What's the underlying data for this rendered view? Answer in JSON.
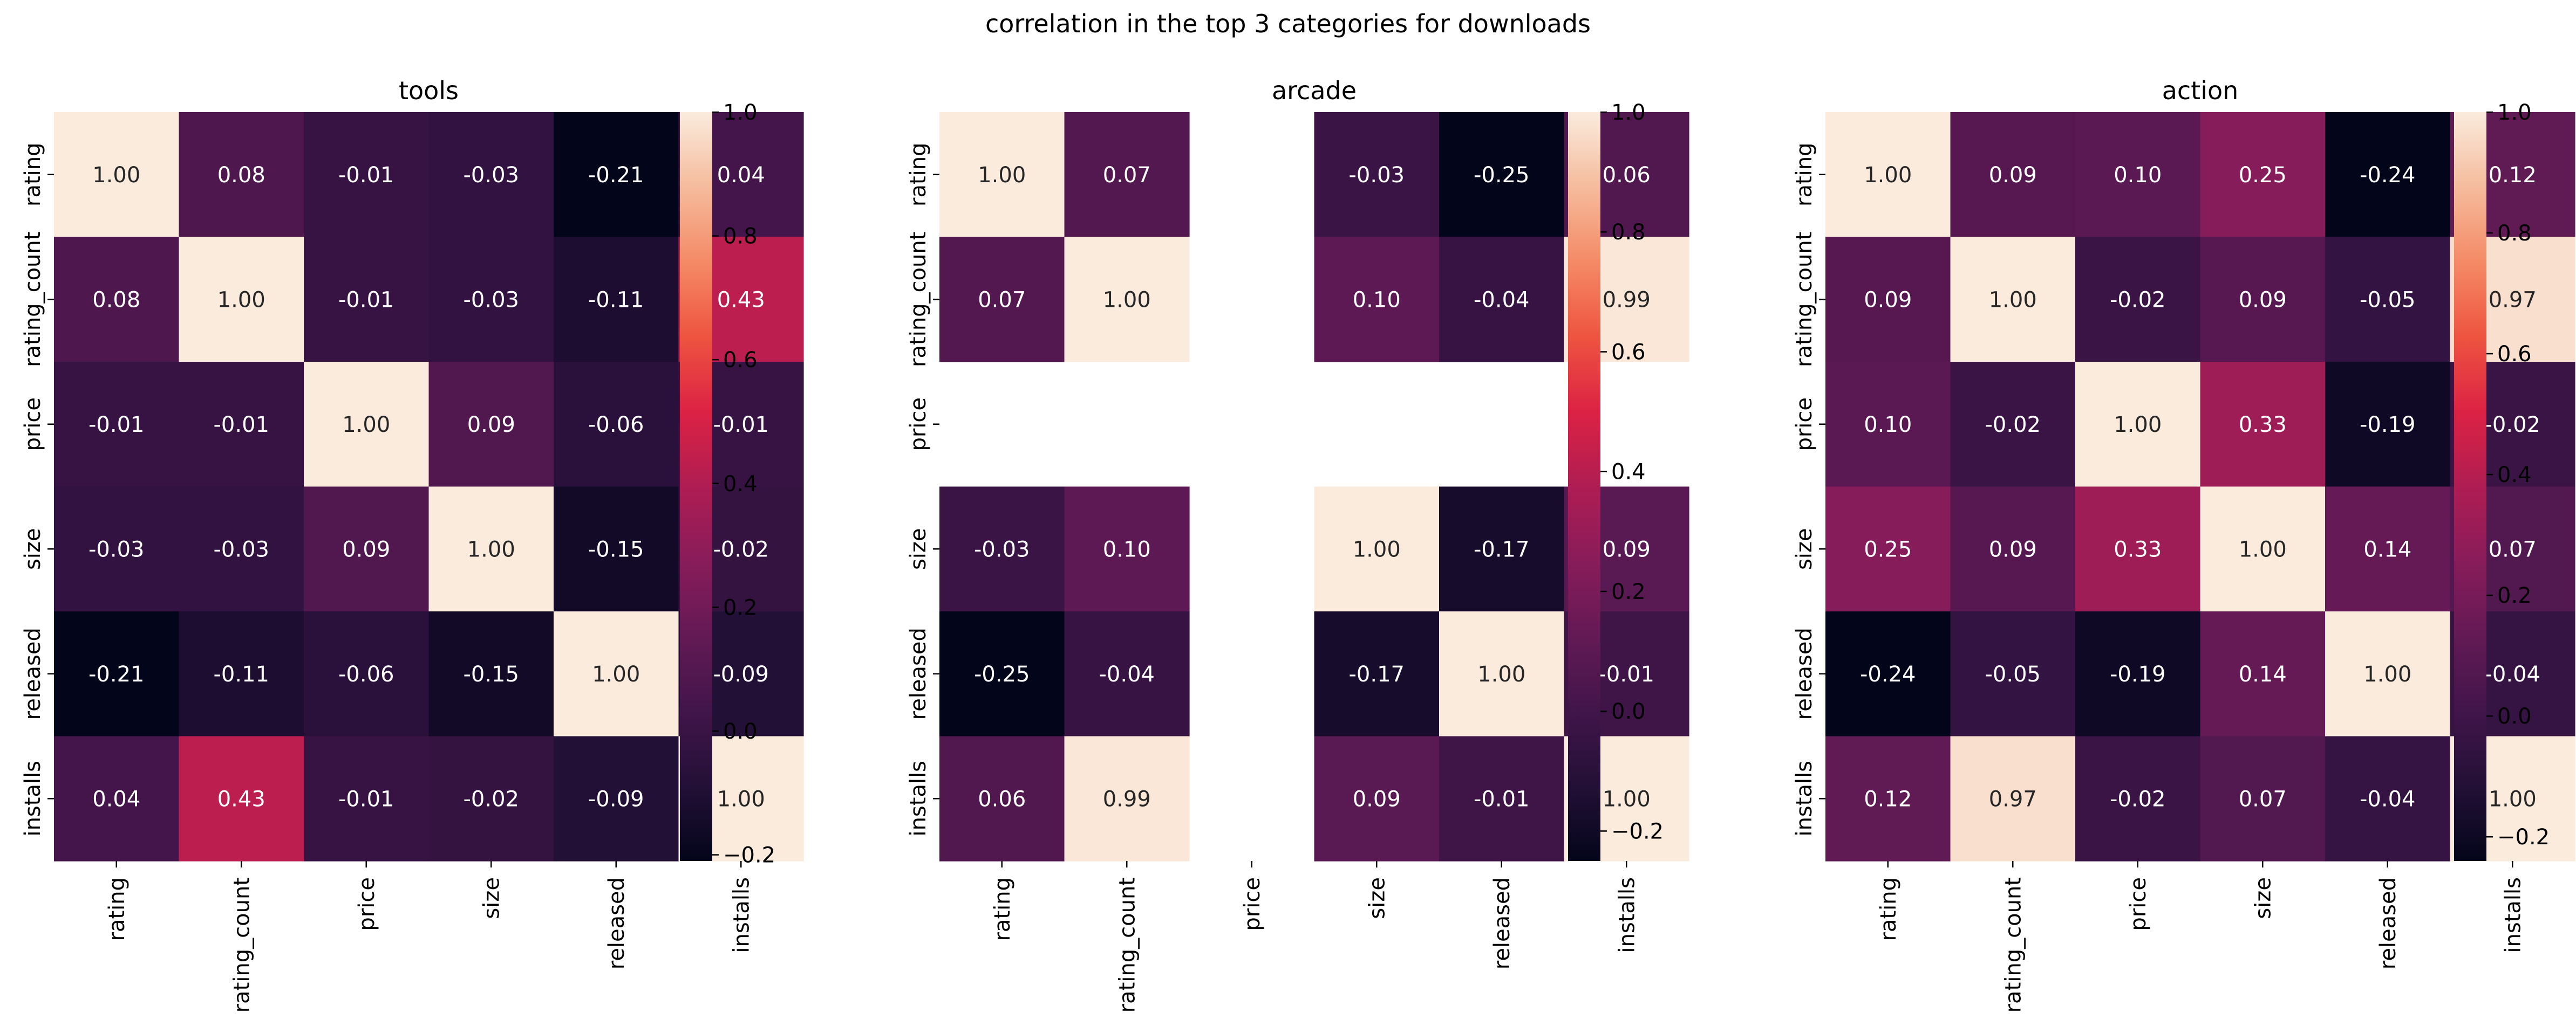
{
  "figure": {
    "title": "correlation in the top 3 categories for downloads"
  },
  "chart_data": [
    {
      "type": "heatmap",
      "title": "tools",
      "x": [
        "rating",
        "rating_count",
        "price",
        "size",
        "released",
        "installs"
      ],
      "y": [
        "rating",
        "rating_count",
        "price",
        "size",
        "released",
        "installs"
      ],
      "values": [
        [
          1.0,
          0.08,
          -0.01,
          -0.03,
          -0.21,
          0.04
        ],
        [
          0.08,
          1.0,
          -0.01,
          -0.03,
          -0.11,
          0.43
        ],
        [
          -0.01,
          -0.01,
          1.0,
          0.09,
          -0.06,
          -0.01
        ],
        [
          -0.03,
          -0.03,
          0.09,
          1.0,
          -0.15,
          -0.02
        ],
        [
          -0.21,
          -0.11,
          -0.06,
          -0.15,
          1.0,
          -0.09
        ],
        [
          0.04,
          0.43,
          -0.01,
          -0.02,
          -0.09,
          1.0
        ]
      ],
      "colorbar": {
        "vmin": -0.21,
        "vmax": 1.0,
        "ticks": [
          "−0.2",
          "0.0",
          "0.2",
          "0.4",
          "0.6",
          "0.8",
          "1.0"
        ]
      }
    },
    {
      "type": "heatmap",
      "title": "arcade",
      "x": [
        "rating",
        "rating_count",
        "price",
        "size",
        "released",
        "installs"
      ],
      "y": [
        "rating",
        "rating_count",
        "price",
        "size",
        "released",
        "installs"
      ],
      "values": [
        [
          1.0,
          0.07,
          null,
          -0.03,
          -0.25,
          0.06
        ],
        [
          0.07,
          1.0,
          null,
          0.1,
          -0.04,
          0.99
        ],
        [
          null,
          null,
          null,
          null,
          null,
          null
        ],
        [
          -0.03,
          0.1,
          null,
          1.0,
          -0.17,
          0.09
        ],
        [
          -0.25,
          -0.04,
          null,
          -0.17,
          1.0,
          -0.01
        ],
        [
          0.06,
          0.99,
          null,
          0.09,
          -0.01,
          1.0
        ]
      ],
      "colorbar": {
        "vmin": -0.25,
        "vmax": 1.0,
        "ticks": [
          "−0.2",
          "0.0",
          "0.2",
          "0.4",
          "0.6",
          "0.8",
          "1.0"
        ]
      }
    },
    {
      "type": "heatmap",
      "title": "action",
      "x": [
        "rating",
        "rating_count",
        "price",
        "size",
        "released",
        "installs"
      ],
      "y": [
        "rating",
        "rating_count",
        "price",
        "size",
        "released",
        "installs"
      ],
      "values": [
        [
          1.0,
          0.09,
          0.1,
          0.25,
          -0.24,
          0.12
        ],
        [
          0.09,
          1.0,
          -0.02,
          0.09,
          -0.05,
          0.97
        ],
        [
          0.1,
          -0.02,
          1.0,
          0.33,
          -0.19,
          -0.02
        ],
        [
          0.25,
          0.09,
          0.33,
          1.0,
          0.14,
          0.07
        ],
        [
          -0.24,
          -0.05,
          -0.19,
          0.14,
          1.0,
          -0.04
        ],
        [
          0.12,
          0.97,
          -0.02,
          0.07,
          -0.04,
          1.0
        ]
      ],
      "colorbar": {
        "vmin": -0.24,
        "vmax": 1.0,
        "ticks": [
          "−0.2",
          "0.0",
          "0.2",
          "0.4",
          "0.6",
          "0.8",
          "1.0"
        ]
      }
    }
  ]
}
